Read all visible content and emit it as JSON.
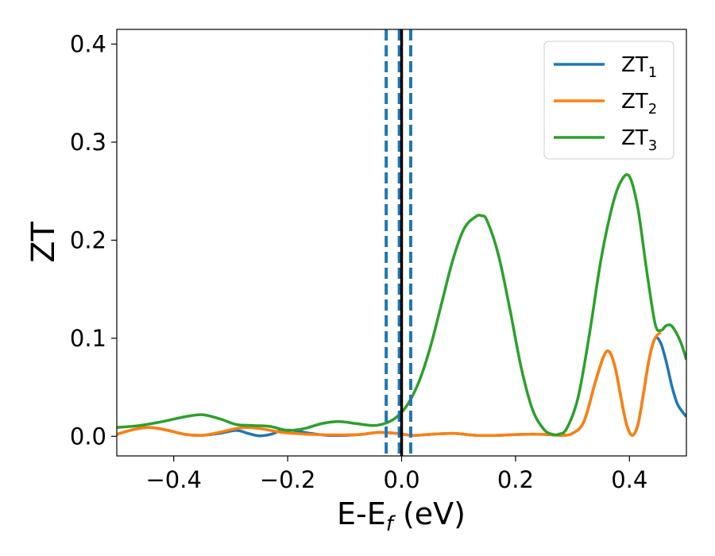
{
  "chart_data": {
    "type": "line",
    "xlabel": {
      "main": "E-E",
      "sub": "f",
      "suffix": " (eV)"
    },
    "ylabel": "ZT",
    "xlim": [
      -0.5,
      0.5
    ],
    "ylim": [
      -0.02,
      0.415
    ],
    "x_ticks": [
      -0.4,
      -0.2,
      0.0,
      0.2,
      0.4
    ],
    "x_tick_labels": [
      "−0.4",
      "−0.2",
      "0.0",
      "0.2",
      "0.4"
    ],
    "y_ticks": [
      0.0,
      0.1,
      0.2,
      0.3,
      0.4
    ],
    "y_tick_labels": [
      "0.0",
      "0.1",
      "0.2",
      "0.3",
      "0.4"
    ],
    "grid": false,
    "legend_position": "top-right",
    "vertical_lines": [
      {
        "x": -0.027,
        "style": "dashed",
        "color": "#1f77b4"
      },
      {
        "x": 0.016,
        "style": "dashed",
        "color": "#1f77b4"
      },
      {
        "x": -0.004,
        "style": "dashed",
        "color": "#1f77b4"
      },
      {
        "x": 0.0,
        "style": "solid",
        "color": "#000000"
      }
    ],
    "series": [
      {
        "name": "ZT",
        "name_sub": "1",
        "color": "#1f77b4",
        "x": [
          -0.5,
          -0.47,
          -0.44,
          -0.41,
          -0.38,
          -0.35,
          -0.32,
          -0.29,
          -0.27,
          -0.25,
          -0.23,
          -0.21,
          -0.19,
          -0.16,
          -0.13,
          -0.1,
          -0.07,
          -0.04,
          -0.01,
          0.02,
          0.05,
          0.09,
          0.13,
          0.17,
          0.21,
          0.25,
          0.28,
          0.3,
          0.32,
          0.34,
          0.355,
          0.365,
          0.375,
          0.385,
          0.395,
          0.405,
          0.415,
          0.425,
          0.435,
          0.445,
          0.455,
          0.465,
          0.475,
          0.485,
          0.5
        ],
        "y": [
          0.002,
          0.007,
          0.009,
          0.006,
          0.002,
          0.001,
          0.003,
          0.006,
          0.003,
          0.0005,
          0.002,
          0.006,
          0.006,
          0.003,
          0.001,
          0.001,
          0.002,
          0.004,
          0.003,
          0.001,
          0.002,
          0.003,
          0.001,
          0.001,
          0.002,
          0.002,
          0.001,
          0.003,
          0.015,
          0.055,
          0.082,
          0.086,
          0.07,
          0.04,
          0.012,
          0.001,
          0.012,
          0.045,
          0.08,
          0.1,
          0.095,
          0.075,
          0.05,
          0.032,
          0.02
        ]
      },
      {
        "name": "ZT",
        "name_sub": "2",
        "color": "#ff7f0e",
        "x": [
          -0.5,
          -0.47,
          -0.44,
          -0.41,
          -0.38,
          -0.35,
          -0.32,
          -0.29,
          -0.27,
          -0.25,
          -0.23,
          -0.21,
          -0.19,
          -0.16,
          -0.13,
          -0.1,
          -0.07,
          -0.04,
          -0.01,
          0.02,
          0.05,
          0.09,
          0.13,
          0.17,
          0.21,
          0.25,
          0.28,
          0.3,
          0.32,
          0.34,
          0.355,
          0.365,
          0.375,
          0.385,
          0.395,
          0.405,
          0.415,
          0.425,
          0.435,
          0.445,
          0.455
        ],
        "y": [
          0.002,
          0.007,
          0.009,
          0.006,
          0.002,
          0.001,
          0.004,
          0.008,
          0.009,
          0.008,
          0.006,
          0.004,
          0.003,
          0.002,
          0.0015,
          0.0015,
          0.002,
          0.004,
          0.003,
          0.001,
          0.002,
          0.003,
          0.001,
          0.001,
          0.002,
          0.002,
          0.001,
          0.003,
          0.015,
          0.055,
          0.082,
          0.086,
          0.07,
          0.04,
          0.012,
          0.001,
          0.012,
          0.045,
          0.08,
          0.1,
          0.106
        ]
      },
      {
        "name": "ZT",
        "name_sub": "3",
        "color": "#2ca02c",
        "x": [
          -0.5,
          -0.46,
          -0.42,
          -0.38,
          -0.35,
          -0.32,
          -0.29,
          -0.26,
          -0.23,
          -0.2,
          -0.17,
          -0.14,
          -0.11,
          -0.08,
          -0.05,
          -0.03,
          -0.01,
          0.01,
          0.03,
          0.05,
          0.07,
          0.09,
          0.11,
          0.13,
          0.14,
          0.15,
          0.17,
          0.19,
          0.21,
          0.23,
          0.25,
          0.265,
          0.275,
          0.29,
          0.31,
          0.33,
          0.35,
          0.37,
          0.385,
          0.4,
          0.415,
          0.43,
          0.445,
          0.455,
          0.465,
          0.475,
          0.49,
          0.5
        ],
        "y": [
          0.009,
          0.011,
          0.015,
          0.02,
          0.022,
          0.018,
          0.012,
          0.011,
          0.01,
          0.006,
          0.008,
          0.013,
          0.015,
          0.013,
          0.011,
          0.013,
          0.019,
          0.032,
          0.055,
          0.09,
          0.135,
          0.18,
          0.212,
          0.224,
          0.225,
          0.22,
          0.185,
          0.13,
          0.07,
          0.027,
          0.007,
          0.002,
          0.002,
          0.008,
          0.04,
          0.105,
          0.18,
          0.235,
          0.26,
          0.265,
          0.232,
          0.17,
          0.115,
          0.108,
          0.113,
          0.112,
          0.096,
          0.078
        ]
      }
    ]
  }
}
